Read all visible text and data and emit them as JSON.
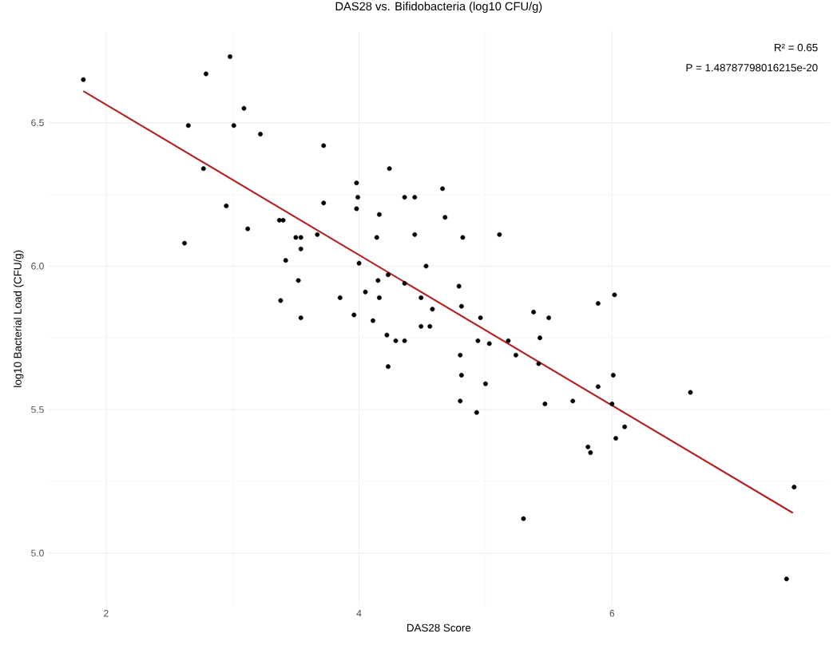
{
  "chart_data": {
    "type": "scatter",
    "title": "DAS28 vs. Bifidobacteria (log10 CFU/g)",
    "xlabel": "DAS28 Score",
    "ylabel": "log10 Bacterial Load (CFU/g)",
    "xlim": [
      1.54,
      7.72
    ],
    "ylim": [
      4.815,
      6.818
    ],
    "xticks": [
      2,
      4,
      6
    ],
    "yticks": [
      {
        "value": 5,
        "label": "5.0"
      },
      {
        "value": 5.5,
        "label": "5.5"
      },
      {
        "value": 6,
        "label": "6.0"
      },
      {
        "value": 6.5,
        "label": "6.5"
      }
    ],
    "grid": true,
    "marker": "circle",
    "annotations": [
      "R² = 0.65",
      "P = 1.48787798016215e-20"
    ],
    "series": [
      {
        "color": "#000000",
        "x": [
          1.82,
          2.79,
          2.98,
          3.09,
          3.01,
          3.22,
          2.65,
          3.72,
          2.77,
          3.98,
          3.99,
          3.98,
          2.95,
          3.72,
          3.12,
          3.37,
          3.4,
          3.5,
          3.54,
          3.67,
          3.54,
          2.62,
          3.42,
          4.0,
          3.52,
          3.38,
          3.85,
          4.05,
          3.96,
          3.54,
          4.24,
          4.16,
          4.14,
          4.36,
          4.44,
          4.66,
          4.68,
          4.44,
          4.82,
          5.11,
          4.53,
          4.15,
          4.23,
          4.36,
          4.16,
          4.49,
          4.58,
          4.79,
          4.81,
          4.11,
          4.49,
          4.56,
          4.96,
          4.22,
          4.29,
          4.36,
          4.94,
          5.03,
          5.18,
          5.38,
          5.5,
          5.43,
          5.24,
          5.42,
          5.89,
          4.8,
          4.23,
          4.81,
          5.0,
          4.8,
          4.93,
          5.47,
          5.69,
          5.89,
          6.02,
          6.01,
          6.0,
          6.1,
          6.03,
          5.81,
          5.83,
          5.3,
          6.62,
          7.44,
          7.38
        ],
        "values": [
          6.65,
          6.67,
          6.73,
          6.55,
          6.49,
          6.46,
          6.49,
          6.42,
          6.34,
          6.29,
          6.24,
          6.2,
          6.21,
          6.22,
          6.13,
          6.16,
          6.16,
          6.1,
          6.1,
          6.11,
          6.06,
          6.08,
          6.02,
          6.01,
          5.95,
          5.88,
          5.89,
          5.91,
          5.83,
          5.82,
          6.34,
          6.18,
          6.1,
          6.24,
          6.24,
          6.27,
          6.17,
          6.11,
          6.1,
          6.11,
          6.0,
          5.95,
          5.97,
          5.94,
          5.89,
          5.89,
          5.85,
          5.93,
          5.86,
          5.81,
          5.79,
          5.79,
          5.82,
          5.76,
          5.74,
          5.74,
          5.74,
          5.73,
          5.74,
          5.84,
          5.82,
          5.75,
          5.69,
          5.66,
          5.87,
          5.69,
          5.65,
          5.62,
          5.59,
          5.53,
          5.49,
          5.52,
          5.53,
          5.58,
          5.9,
          5.62,
          5.52,
          5.44,
          5.4,
          5.37,
          5.35,
          5.12,
          5.56,
          5.23,
          4.91
        ]
      },
      {
        "type": "line",
        "color": "#b22222",
        "marker": "none",
        "x": [
          1.82,
          7.43
        ],
        "values": [
          6.61,
          5.14
        ]
      }
    ]
  }
}
